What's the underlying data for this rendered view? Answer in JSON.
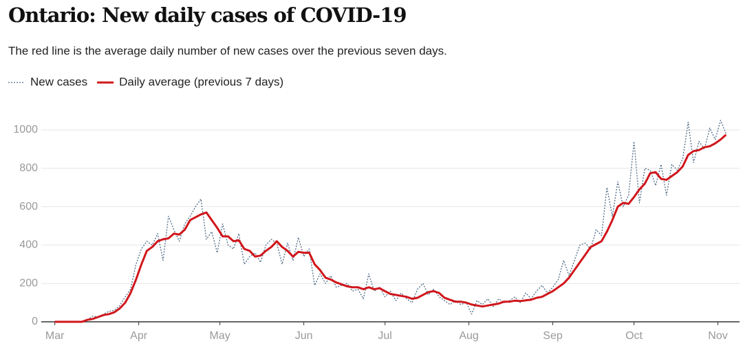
{
  "chart_data": {
    "type": "line",
    "title": "Ontario: New daily cases of COVID-19",
    "subtitle": "The red line is the average daily number of new cases over the previous seven days.",
    "x": [
      0,
      2,
      4,
      6,
      8,
      10,
      12,
      14,
      16,
      18,
      20,
      22,
      24,
      26,
      28,
      30,
      32,
      34,
      36,
      38,
      40,
      42,
      44,
      46,
      48,
      50,
      52,
      54,
      56,
      58,
      60,
      62,
      64,
      66,
      68,
      70,
      72,
      74,
      76,
      78,
      80,
      82,
      84,
      86,
      88,
      90,
      92,
      94,
      96,
      98,
      100,
      102,
      104,
      106,
      108,
      110,
      112,
      114,
      116,
      118,
      120,
      122,
      124,
      126,
      128,
      130,
      132,
      134,
      136,
      138,
      140,
      142,
      144,
      146,
      148,
      150,
      152,
      154,
      156,
      158,
      160,
      162,
      164,
      166,
      168,
      170,
      172,
      174,
      176,
      178,
      180,
      182,
      184,
      186,
      188,
      190,
      192,
      194,
      196,
      198,
      200,
      202,
      204,
      206,
      208,
      210,
      212,
      214,
      216,
      218,
      220,
      222,
      224,
      226,
      228,
      230,
      232,
      234,
      236,
      238,
      240,
      242,
      244,
      246,
      248
    ],
    "series": [
      {
        "name": "New cases",
        "color": "#4d6a85",
        "style": "dotted",
        "values": [
          0,
          0,
          0,
          0,
          0,
          0,
          10,
          30,
          25,
          40,
          55,
          60,
          85,
          130,
          170,
          300,
          380,
          420,
          400,
          460,
          320,
          550,
          480,
          420,
          510,
          550,
          600,
          640,
          430,
          470,
          360,
          510,
          400,
          380,
          460,
          300,
          340,
          360,
          310,
          400,
          430,
          410,
          300,
          410,
          320,
          440,
          340,
          380,
          190,
          250,
          200,
          240,
          180,
          190,
          200,
          160,
          170,
          120,
          250,
          160,
          180,
          130,
          160,
          110,
          150,
          120,
          100,
          170,
          200,
          140,
          170,
          130,
          110,
          90,
          110,
          90,
          100,
          40,
          110,
          90,
          120,
          80,
          120,
          100,
          110,
          130,
          100,
          150,
          120,
          160,
          190,
          150,
          180,
          220,
          320,
          240,
          320,
          400,
          410,
          380,
          480,
          450,
          700,
          550,
          730,
          600,
          660,
          940,
          620,
          800,
          790,
          710,
          820,
          660,
          820,
          790,
          850,
          1040,
          830,
          940,
          900,
          1010,
          950,
          1050,
          980
        ]
      },
      {
        "name": "Daily average (previous 7 days)",
        "color": "#d0161b",
        "style": "solid",
        "values": [
          0,
          0,
          0,
          0,
          0,
          0,
          10,
          15,
          25,
          35,
          40,
          50,
          70,
          100,
          150,
          220,
          300,
          370,
          390,
          420,
          430,
          435,
          460,
          455,
          480,
          530,
          545,
          560,
          570,
          530,
          490,
          445,
          445,
          420,
          425,
          380,
          370,
          340,
          345,
          370,
          390,
          420,
          390,
          370,
          340,
          365,
          360,
          360,
          300,
          270,
          230,
          220,
          205,
          195,
          185,
          180,
          180,
          170,
          180,
          170,
          175,
          160,
          145,
          140,
          135,
          130,
          120,
          125,
          140,
          155,
          160,
          150,
          125,
          115,
          105,
          105,
          100,
          90,
          85,
          80,
          85,
          90,
          95,
          105,
          105,
          110,
          108,
          112,
          115,
          125,
          130,
          145,
          160,
          180,
          200,
          230,
          270,
          310,
          350,
          390,
          405,
          420,
          470,
          530,
          600,
          620,
          615,
          650,
          690,
          720,
          775,
          780,
          745,
          740,
          760,
          780,
          810,
          870,
          890,
          895,
          910,
          915,
          930,
          950,
          975
        ]
      }
    ],
    "xlim": [
      -5,
      253
    ],
    "xticks": [
      {
        "value": 0,
        "label": "Mar"
      },
      {
        "value": 31,
        "label": "Apr"
      },
      {
        "value": 61,
        "label": "May"
      },
      {
        "value": 92,
        "label": "Jun"
      },
      {
        "value": 122,
        "label": "Jul"
      },
      {
        "value": 153,
        "label": "Aug"
      },
      {
        "value": 184,
        "label": "Sep"
      },
      {
        "value": 214,
        "label": "Oct"
      },
      {
        "value": 245,
        "label": "Nov"
      }
    ],
    "ylim": [
      0,
      1100
    ],
    "yticks": [
      0,
      200,
      400,
      600,
      800,
      1000
    ],
    "grid": true
  }
}
